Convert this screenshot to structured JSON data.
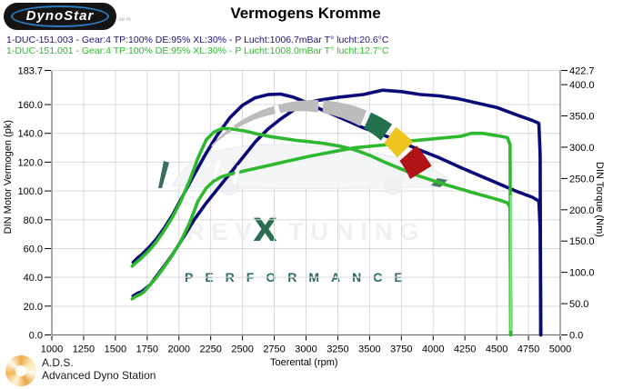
{
  "logo": {
    "text": "DynoStar",
    "fineprint": ".se m"
  },
  "title": "Vermogens Kromme",
  "runs": [
    {
      "label": "1-DUC-151.003 - Gear:4 TP:100% DE:95% XL:30%  - P Lucht:1006.7mBar T° lucht:20.6°C",
      "color": "#181878"
    },
    {
      "label": "1-DUC-151.001 - Gear:4 TP:100% DE:95% XL:30%  - P Lucht:1008.0mBar T° lucht:12.7°C",
      "color": "#2eb82e"
    }
  ],
  "watermark": {
    "rev": "REV",
    "x": "X",
    "tuning": "TUNING",
    "performance": "PERFORMANCE",
    "faint_color": "#f0f0f0",
    "green": "#2a6e52"
  },
  "footer": {
    "abbr": "A.D.S.",
    "name": "Advanced Dyno Station"
  },
  "gauge_colors": {
    "grey": "#bcbcbc",
    "green": "#23714d",
    "yellow": "#eec41f",
    "red": "#b01414"
  },
  "chart_data": {
    "type": "line",
    "title": "Vermogens Kromme",
    "grid": true,
    "legend_position": "none",
    "x_axis": {
      "label": "Toerental (rpm)",
      "min": 1000,
      "max": 5000,
      "tick_step": 250,
      "ticks": [
        1000,
        1250,
        1500,
        1750,
        2000,
        2250,
        2500,
        2750,
        3000,
        3250,
        3500,
        3750,
        4000,
        4250,
        4500,
        4750,
        5000
      ]
    },
    "y_left": {
      "label": "DIN Motor Vermogen (pk)",
      "min": 0,
      "max": 183.7,
      "tick_values": [
        183.7,
        160,
        140,
        120,
        100,
        80,
        60,
        40,
        20,
        0
      ],
      "tick_labels": [
        "183.7",
        "160.0",
        "140.0",
        "120.0",
        "100.0",
        "80.0",
        "60.0",
        "40.0",
        "20.0",
        "0.0"
      ],
      "grid_values": [
        183.7,
        160,
        140,
        120,
        100,
        80,
        60,
        40,
        20
      ]
    },
    "y_right": {
      "label": "DIN Torque (Nm)",
      "min": 0,
      "max": 422.7,
      "tick_values": [
        422.7,
        400,
        350,
        300,
        250,
        200,
        150,
        100,
        50,
        0
      ],
      "tick_labels": [
        "422.7",
        "400.0",
        "350.0",
        "300.0",
        "250.0",
        "200.0",
        "150.0",
        "100.0",
        "50.0",
        "0.0"
      ]
    },
    "series": [
      {
        "name": "torque-run-003",
        "run": "1-DUC-151.003",
        "axis": "right",
        "unit": "Nm",
        "color": "#0a0a78",
        "points": [
          [
            1640,
            116
          ],
          [
            1675,
            123
          ],
          [
            1705,
            128
          ],
          [
            1735,
            134
          ],
          [
            1775,
            142
          ],
          [
            1825,
            154
          ],
          [
            1885,
            171
          ],
          [
            1950,
            192
          ],
          [
            2030,
            222
          ],
          [
            2120,
            256
          ],
          [
            2210,
            289
          ],
          [
            2300,
            319
          ],
          [
            2400,
            347
          ],
          [
            2500,
            367
          ],
          [
            2600,
            379
          ],
          [
            2700,
            384
          ],
          [
            2800,
            385
          ],
          [
            2900,
            380
          ],
          [
            3000,
            372
          ],
          [
            3100,
            362
          ],
          [
            3250,
            349
          ],
          [
            3450,
            331
          ],
          [
            3600,
            320
          ],
          [
            3750,
            308
          ],
          [
            3900,
            295
          ],
          [
            4050,
            283
          ],
          [
            4200,
            269
          ],
          [
            4350,
            256
          ],
          [
            4500,
            243
          ],
          [
            4650,
            230
          ],
          [
            4780,
            220
          ],
          [
            4832,
            214
          ],
          [
            4842,
            170
          ],
          [
            4847,
            0
          ]
        ]
      },
      {
        "name": "power-run-003",
        "run": "1-DUC-151.003",
        "axis": "left",
        "unit": "pk",
        "color": "#0a0a78",
        "points": [
          [
            1640,
            27
          ],
          [
            1675,
            29
          ],
          [
            1705,
            30
          ],
          [
            1735,
            32
          ],
          [
            1775,
            35
          ],
          [
            1825,
            41
          ],
          [
            1885,
            48
          ],
          [
            1950,
            56
          ],
          [
            2030,
            67
          ],
          [
            2120,
            80
          ],
          [
            2210,
            91
          ],
          [
            2300,
            101
          ],
          [
            2400,
            112
          ],
          [
            2500,
            123
          ],
          [
            2600,
            134
          ],
          [
            2700,
            143
          ],
          [
            2800,
            150
          ],
          [
            2900,
            156
          ],
          [
            3000,
            161
          ],
          [
            3100,
            163
          ],
          [
            3250,
            165
          ],
          [
            3450,
            167
          ],
          [
            3600,
            170
          ],
          [
            3750,
            169
          ],
          [
            3900,
            167
          ],
          [
            4050,
            166
          ],
          [
            4200,
            164
          ],
          [
            4350,
            161
          ],
          [
            4500,
            158
          ],
          [
            4650,
            153
          ],
          [
            4780,
            149
          ],
          [
            4832,
            147
          ],
          [
            4842,
            125
          ],
          [
            4847,
            0
          ]
        ]
      },
      {
        "name": "torque-run-001",
        "run": "1-DUC-151.001",
        "axis": "right",
        "unit": "Nm",
        "color": "#2eb82e",
        "points": [
          [
            1632,
            110
          ],
          [
            1665,
            116
          ],
          [
            1695,
            121
          ],
          [
            1725,
            127
          ],
          [
            1765,
            135
          ],
          [
            1815,
            147
          ],
          [
            1875,
            164
          ],
          [
            1945,
            187
          ],
          [
            2015,
            214
          ],
          [
            2085,
            247
          ],
          [
            2150,
            283
          ],
          [
            2215,
            312
          ],
          [
            2275,
            324
          ],
          [
            2340,
            330
          ],
          [
            2420,
            329
          ],
          [
            2520,
            326
          ],
          [
            2620,
            321
          ],
          [
            2720,
            317
          ],
          [
            2820,
            314
          ],
          [
            2920,
            311
          ],
          [
            3020,
            309
          ],
          [
            3140,
            306
          ],
          [
            3260,
            302
          ],
          [
            3380,
            296
          ],
          [
            3500,
            287
          ],
          [
            3620,
            276
          ],
          [
            3740,
            266
          ],
          [
            3860,
            256
          ],
          [
            3980,
            248
          ],
          [
            4100,
            240
          ],
          [
            4220,
            233
          ],
          [
            4300,
            228
          ],
          [
            4390,
            223
          ],
          [
            4460,
            219
          ],
          [
            4530,
            215
          ],
          [
            4585,
            211
          ],
          [
            4605,
            204
          ],
          [
            4611,
            0
          ]
        ]
      },
      {
        "name": "power-run-001",
        "run": "1-DUC-151.001",
        "axis": "left",
        "unit": "pk",
        "color": "#2eb82e",
        "points": [
          [
            1632,
            25
          ],
          [
            1665,
            27
          ],
          [
            1695,
            28
          ],
          [
            1725,
            30
          ],
          [
            1765,
            34
          ],
          [
            1815,
            39
          ],
          [
            1875,
            46
          ],
          [
            1945,
            55
          ],
          [
            2015,
            65
          ],
          [
            2085,
            78
          ],
          [
            2150,
            93
          ],
          [
            2215,
            102
          ],
          [
            2275,
            107
          ],
          [
            2340,
            110
          ],
          [
            2420,
            112
          ],
          [
            2520,
            114
          ],
          [
            2620,
            116
          ],
          [
            2720,
            118
          ],
          [
            2820,
            120
          ],
          [
            2920,
            122
          ],
          [
            3020,
            124
          ],
          [
            3140,
            126
          ],
          [
            3260,
            128
          ],
          [
            3380,
            130
          ],
          [
            3500,
            131
          ],
          [
            3620,
            132
          ],
          [
            3740,
            134
          ],
          [
            3860,
            135
          ],
          [
            3980,
            136
          ],
          [
            4100,
            137
          ],
          [
            4220,
            138
          ],
          [
            4300,
            140
          ],
          [
            4390,
            140
          ],
          [
            4460,
            139
          ],
          [
            4530,
            138
          ],
          [
            4585,
            137
          ],
          [
            4605,
            132
          ],
          [
            4611,
            0
          ]
        ]
      }
    ]
  }
}
